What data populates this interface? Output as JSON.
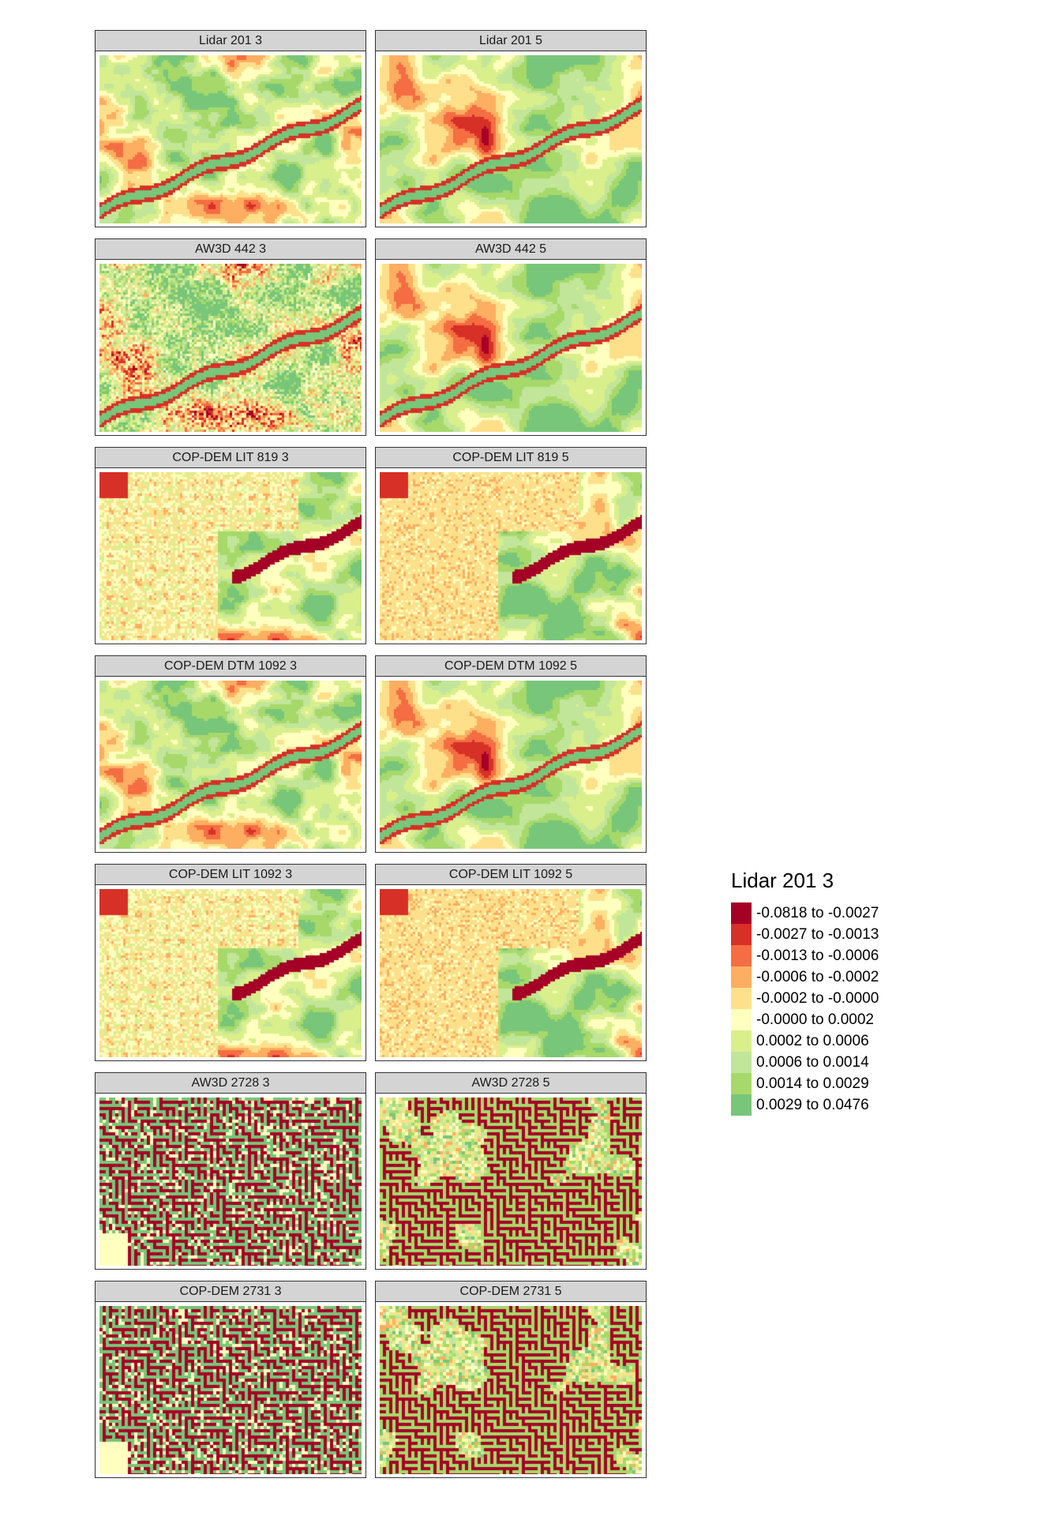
{
  "panels": [
    {
      "label": "Lidar 201 3",
      "style": "lidar",
      "seed": 11
    },
    {
      "label": "Lidar 201 5",
      "style": "lidar5",
      "seed": 12
    },
    {
      "label": "AW3D 442 3",
      "style": "aw3d",
      "seed": 21
    },
    {
      "label": "AW3D 442 5",
      "style": "aw3d5",
      "seed": 22
    },
    {
      "label": "COP-DEM LIT 819 3",
      "style": "lit",
      "seed": 31
    },
    {
      "label": "COP-DEM LIT 819 5",
      "style": "lit5",
      "seed": 32
    },
    {
      "label": "COP-DEM DTM 1092 3",
      "style": "dtm",
      "seed": 41
    },
    {
      "label": "COP-DEM DTM 1092 5",
      "style": "dtm5",
      "seed": 42
    },
    {
      "label": "COP-DEM LIT 1092 3",
      "style": "lit",
      "seed": 51
    },
    {
      "label": "COP-DEM LIT 1092 5",
      "style": "lit5",
      "seed": 52
    },
    {
      "label": "AW3D 2728 3",
      "style": "grid",
      "seed": 61
    },
    {
      "label": "AW3D 2728 5",
      "style": "grid5",
      "seed": 62
    },
    {
      "label": "COP-DEM 2731 3",
      "style": "grid",
      "seed": 71
    },
    {
      "label": "COP-DEM 2731 5",
      "style": "grid5",
      "seed": 72
    }
  ],
  "legend": {
    "title": "Lidar 201 3",
    "classes": [
      {
        "label": "-0.0818 to -0.0027",
        "color": "#a50026"
      },
      {
        "label": "-0.0027 to -0.0013",
        "color": "#d73027"
      },
      {
        "label": "-0.0013 to -0.0006",
        "color": "#f46d43"
      },
      {
        "label": "-0.0006 to -0.0002",
        "color": "#fdae61"
      },
      {
        "label": "-0.0002 to -0.0000",
        "color": "#fee08b"
      },
      {
        "label": "-0.0000 to 0.0002",
        "color": "#ffffbf"
      },
      {
        "label": "0.0002 to 0.0006",
        "color": "#d9ef8b"
      },
      {
        "label": "0.0006 to 0.0014",
        "color": "#c2e699"
      },
      {
        "label": "0.0014 to 0.0029",
        "color": "#a6d96a"
      },
      {
        "label": "0.0029 to 0.0476",
        "color": "#78c679"
      }
    ]
  }
}
